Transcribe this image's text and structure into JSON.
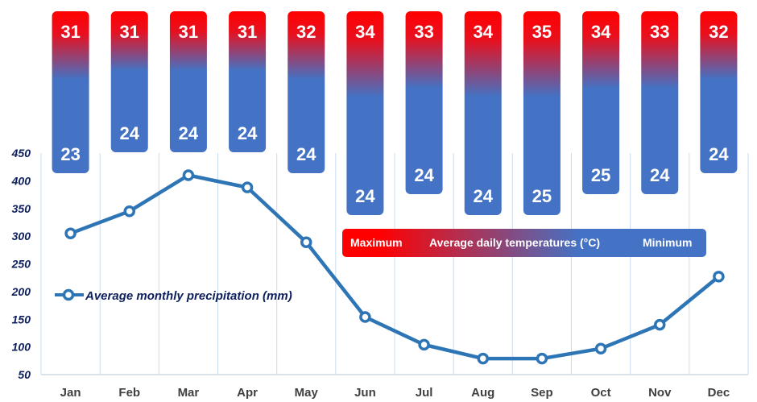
{
  "chart_data": {
    "type": "line",
    "categories": [
      "Jan",
      "Feb",
      "Mar",
      "Apr",
      "May",
      "Jun",
      "Jul",
      "Aug",
      "Sep",
      "Oct",
      "Nov",
      "Dec"
    ],
    "series": [
      {
        "name": "Average monthly precipitation (mm)",
        "values": [
          305,
          345,
          410,
          388,
          289,
          154,
          104,
          79,
          79,
          97,
          140,
          227
        ],
        "color": "#2e75b6"
      }
    ],
    "ylim": [
      50,
      450
    ],
    "yticks": [
      50,
      100,
      150,
      200,
      250,
      300,
      350,
      400,
      450
    ],
    "grid": "vertical",
    "temperatures": {
      "legend": {
        "max_label": "Maximum",
        "title": "Average daily temperatures (°C)",
        "min_label": "Minimum"
      },
      "max": [
        31,
        31,
        31,
        31,
        32,
        34,
        33,
        34,
        35,
        34,
        33,
        32
      ],
      "min": [
        23,
        24,
        24,
        24,
        24,
        24,
        24,
        24,
        25,
        25,
        24,
        24
      ],
      "max_color": "#ff0000",
      "min_color": "#4472c4"
    }
  }
}
